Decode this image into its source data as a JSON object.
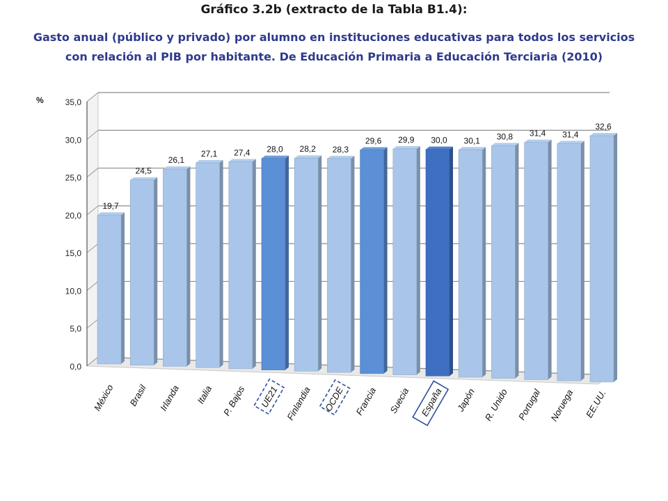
{
  "header": {
    "title": "Gráfico 3.2b (extracto de la Tabla B1.4):",
    "subtitle": "Gasto anual (público y privado) por alumno en instituciones educativas para todos los servicios con relación al PIB por habitante. De Educación Primaria a Educación Terciaria (2010)"
  },
  "chart_data": {
    "type": "bar",
    "title": "Gráfico 3.2b (extracto de la Tabla B1.4):",
    "ylabel": "%",
    "ylim": [
      0,
      35
    ],
    "yticks": [
      "0,0",
      "5,0",
      "10,0",
      "15,0",
      "20,0",
      "25,0",
      "30,0",
      "35,0"
    ],
    "grid": true,
    "categories": [
      "México",
      "Brasil",
      "Irlanda",
      "Italia",
      "P. Bajos",
      "UE21",
      "Finlandia",
      "OCDE",
      "Francia",
      "Suecia",
      "España",
      "Japón",
      "R. Unido",
      "Portugal",
      "Noruega",
      "EE.UU."
    ],
    "values": [
      19.7,
      24.5,
      26.1,
      27.1,
      27.4,
      28.0,
      28.2,
      28.3,
      29.6,
      29.9,
      30.0,
      30.1,
      30.8,
      31.4,
      31.4,
      32.6
    ],
    "value_labels": [
      "19,7",
      "24,5",
      "26,1",
      "27,1",
      "27,4",
      "28,0",
      "28,2",
      "28,3",
      "29,6",
      "29,9",
      "30,0",
      "30,1",
      "30,8",
      "31,4",
      "31,4",
      "32,6"
    ],
    "colors": {
      "default": "#a9c6ea",
      "highlight": "#5b8fd6",
      "spain": "#3f6fc1",
      "box_dashed": "#2b4f9e",
      "box_solid": "#2b4f9e"
    },
    "highlight_categories": [
      "UE21",
      "Francia"
    ],
    "spain_category": "España",
    "dashed_box_categories": [
      "UE21",
      "OCDE"
    ],
    "solid_box_categories": [
      "España"
    ]
  }
}
